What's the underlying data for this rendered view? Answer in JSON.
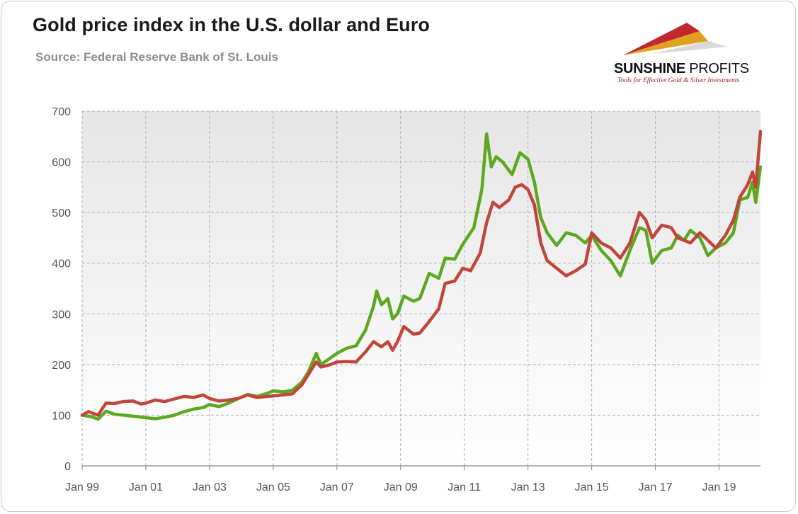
{
  "header": {
    "title": "Gold price index in the U.S. dollar and Euro",
    "subtitle": "Source: Federal Reserve Bank of St. Louis"
  },
  "logo": {
    "name_bold": "SUNSHINE",
    "name_rest": " PROFITS",
    "tagline": "Tools for Effective Gold & Silver Investments",
    "colors": [
      "#c0282d",
      "#e0a020",
      "#d9d9d9"
    ]
  },
  "chart_data": {
    "type": "line",
    "title": "Gold price index in the U.S. dollar and Euro",
    "subtitle": "Source: Federal Reserve Bank of St. Louis",
    "xlabel": "",
    "ylabel": "",
    "xlim": [
      1999.0,
      2020.3
    ],
    "ylim": [
      0,
      700
    ],
    "y_ticks": [
      0,
      100,
      200,
      300,
      400,
      500,
      600,
      700
    ],
    "x_ticks": [
      {
        "label": "Jan 99",
        "x": 1999.0
      },
      {
        "label": "Jan 01",
        "x": 2001.0
      },
      {
        "label": "Jan 03",
        "x": 2003.0
      },
      {
        "label": "Jan 05",
        "x": 2005.0
      },
      {
        "label": "Jan 07",
        "x": 2007.0
      },
      {
        "label": "Jan 09",
        "x": 2009.0
      },
      {
        "label": "Jan 11",
        "x": 2011.0
      },
      {
        "label": "Jan 13",
        "x": 2013.0
      },
      {
        "label": "Jan 15",
        "x": 2015.0
      },
      {
        "label": "Jan 17",
        "x": 2017.0
      },
      {
        "label": "Jan 19",
        "x": 2019.0
      }
    ],
    "grid": true,
    "legend": "none",
    "series": [
      {
        "color": "#5ea821",
        "points": [
          [
            1999.0,
            100
          ],
          [
            1999.3,
            97
          ],
          [
            1999.5,
            92
          ],
          [
            1999.75,
            108
          ],
          [
            2000.0,
            102
          ],
          [
            2000.3,
            100
          ],
          [
            2000.6,
            98
          ],
          [
            2001.0,
            95
          ],
          [
            2001.3,
            93
          ],
          [
            2001.6,
            96
          ],
          [
            2001.9,
            100
          ],
          [
            2002.2,
            107
          ],
          [
            2002.5,
            112
          ],
          [
            2002.8,
            115
          ],
          [
            2003.0,
            121
          ],
          [
            2003.3,
            117
          ],
          [
            2003.6,
            124
          ],
          [
            2003.9,
            133
          ],
          [
            2004.2,
            141
          ],
          [
            2004.5,
            137
          ],
          [
            2004.8,
            143
          ],
          [
            2005.0,
            148
          ],
          [
            2005.3,
            146
          ],
          [
            2005.6,
            149
          ],
          [
            2005.9,
            165
          ],
          [
            2006.1,
            185
          ],
          [
            2006.35,
            222
          ],
          [
            2006.5,
            200
          ],
          [
            2006.8,
            213
          ],
          [
            2007.0,
            222
          ],
          [
            2007.3,
            232
          ],
          [
            2007.6,
            237
          ],
          [
            2007.9,
            268
          ],
          [
            2008.15,
            315
          ],
          [
            2008.25,
            345
          ],
          [
            2008.4,
            318
          ],
          [
            2008.6,
            330
          ],
          [
            2008.75,
            290
          ],
          [
            2008.9,
            300
          ],
          [
            2009.1,
            335
          ],
          [
            2009.4,
            325
          ],
          [
            2009.6,
            330
          ],
          [
            2009.9,
            380
          ],
          [
            2010.2,
            370
          ],
          [
            2010.4,
            410
          ],
          [
            2010.7,
            408
          ],
          [
            2010.95,
            437
          ],
          [
            2011.3,
            470
          ],
          [
            2011.55,
            545
          ],
          [
            2011.7,
            655
          ],
          [
            2011.85,
            590
          ],
          [
            2012.0,
            610
          ],
          [
            2012.2,
            600
          ],
          [
            2012.5,
            575
          ],
          [
            2012.75,
            618
          ],
          [
            2013.0,
            605
          ],
          [
            2013.2,
            560
          ],
          [
            2013.4,
            490
          ],
          [
            2013.6,
            460
          ],
          [
            2013.9,
            435
          ],
          [
            2014.2,
            460
          ],
          [
            2014.5,
            455
          ],
          [
            2014.8,
            440
          ],
          [
            2015.0,
            455
          ],
          [
            2015.3,
            425
          ],
          [
            2015.6,
            405
          ],
          [
            2015.9,
            375
          ],
          [
            2016.2,
            425
          ],
          [
            2016.5,
            470
          ],
          [
            2016.7,
            465
          ],
          [
            2016.9,
            400
          ],
          [
            2017.2,
            425
          ],
          [
            2017.5,
            430
          ],
          [
            2017.7,
            455
          ],
          [
            2017.9,
            445
          ],
          [
            2018.1,
            465
          ],
          [
            2018.4,
            450
          ],
          [
            2018.65,
            415
          ],
          [
            2018.9,
            430
          ],
          [
            2019.2,
            440
          ],
          [
            2019.45,
            460
          ],
          [
            2019.65,
            525
          ],
          [
            2019.9,
            530
          ],
          [
            2020.05,
            560
          ],
          [
            2020.15,
            520
          ],
          [
            2020.3,
            590
          ]
        ]
      },
      {
        "color": "#c0463c",
        "points": [
          [
            1999.0,
            100
          ],
          [
            1999.2,
            107
          ],
          [
            1999.5,
            100
          ],
          [
            1999.75,
            124
          ],
          [
            2000.0,
            123
          ],
          [
            2000.3,
            127
          ],
          [
            2000.6,
            128
          ],
          [
            2000.85,
            122
          ],
          [
            2001.0,
            124
          ],
          [
            2001.3,
            130
          ],
          [
            2001.6,
            127
          ],
          [
            2001.9,
            132
          ],
          [
            2002.2,
            137
          ],
          [
            2002.5,
            135
          ],
          [
            2002.8,
            140
          ],
          [
            2003.0,
            133
          ],
          [
            2003.3,
            128
          ],
          [
            2003.6,
            130
          ],
          [
            2003.9,
            133
          ],
          [
            2004.2,
            140
          ],
          [
            2004.5,
            135
          ],
          [
            2004.8,
            137
          ],
          [
            2005.0,
            138
          ],
          [
            2005.3,
            140
          ],
          [
            2005.6,
            142
          ],
          [
            2005.9,
            160
          ],
          [
            2006.1,
            180
          ],
          [
            2006.35,
            205
          ],
          [
            2006.5,
            195
          ],
          [
            2006.8,
            200
          ],
          [
            2007.0,
            205
          ],
          [
            2007.3,
            206
          ],
          [
            2007.6,
            205
          ],
          [
            2007.9,
            225
          ],
          [
            2008.15,
            245
          ],
          [
            2008.4,
            235
          ],
          [
            2008.6,
            245
          ],
          [
            2008.75,
            228
          ],
          [
            2008.9,
            245
          ],
          [
            2009.1,
            275
          ],
          [
            2009.4,
            260
          ],
          [
            2009.6,
            262
          ],
          [
            2009.9,
            285
          ],
          [
            2010.2,
            310
          ],
          [
            2010.4,
            360
          ],
          [
            2010.7,
            365
          ],
          [
            2010.95,
            390
          ],
          [
            2011.2,
            385
          ],
          [
            2011.5,
            420
          ],
          [
            2011.7,
            480
          ],
          [
            2011.9,
            520
          ],
          [
            2012.1,
            510
          ],
          [
            2012.4,
            525
          ],
          [
            2012.6,
            550
          ],
          [
            2012.8,
            555
          ],
          [
            2013.0,
            545
          ],
          [
            2013.2,
            515
          ],
          [
            2013.4,
            440
          ],
          [
            2013.6,
            405
          ],
          [
            2013.9,
            390
          ],
          [
            2014.2,
            375
          ],
          [
            2014.5,
            385
          ],
          [
            2014.8,
            398
          ],
          [
            2015.0,
            460
          ],
          [
            2015.3,
            440
          ],
          [
            2015.6,
            430
          ],
          [
            2015.9,
            410
          ],
          [
            2016.2,
            440
          ],
          [
            2016.5,
            500
          ],
          [
            2016.7,
            485
          ],
          [
            2016.9,
            450
          ],
          [
            2017.2,
            475
          ],
          [
            2017.5,
            470
          ],
          [
            2017.7,
            450
          ],
          [
            2017.9,
            445
          ],
          [
            2018.1,
            440
          ],
          [
            2018.4,
            460
          ],
          [
            2018.65,
            445
          ],
          [
            2018.9,
            430
          ],
          [
            2019.2,
            455
          ],
          [
            2019.45,
            485
          ],
          [
            2019.65,
            530
          ],
          [
            2019.9,
            555
          ],
          [
            2020.05,
            580
          ],
          [
            2020.15,
            550
          ],
          [
            2020.3,
            660
          ]
        ]
      }
    ]
  }
}
